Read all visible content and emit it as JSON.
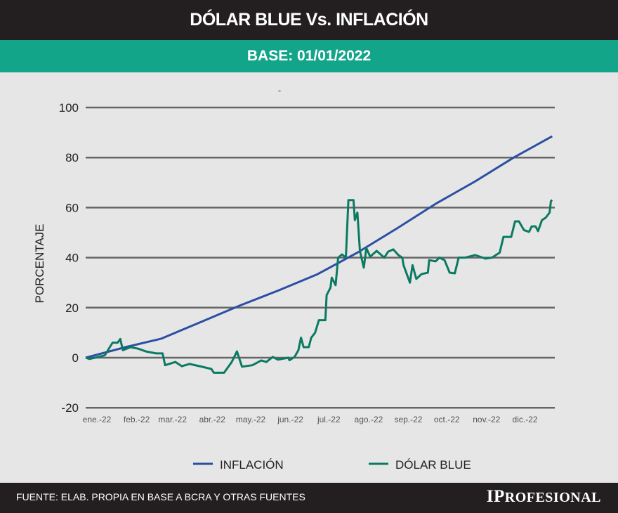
{
  "header": {
    "title": "DÓLAR BLUE Vs. INFLACIÓN",
    "subtitle": "BASE: 01/01/2022"
  },
  "footer": {
    "source": "FUENTE: ELAB. PROPIA EN BASE A BCRA Y OTRAS FUENTES",
    "logo": "IPROFESIONAL"
  },
  "chart_data": {
    "type": "line",
    "title": "",
    "subtitle": "-",
    "xlabel": "",
    "ylabel": "PORCENTAJE",
    "ylim": [
      -20,
      100
    ],
    "yticks": [
      "100",
      "80",
      "60",
      "40",
      "20",
      "0",
      "-20"
    ],
    "ytick_values": [
      100,
      80,
      60,
      40,
      20,
      0,
      -20
    ],
    "xtick_labels": [
      "ene.-22",
      "feb.-22",
      "mar.-22",
      "abr.-22",
      "may.-22",
      "jun.-22",
      "jul.-22",
      "ago.-22",
      "sep.-22",
      "oct.-22",
      "nov.-22",
      "dic.-22"
    ],
    "xtick_dates": [
      "2022-01-01",
      "2022-02-01",
      "2022-03-01",
      "2022-04-01",
      "2022-05-01",
      "2022-06-01",
      "2022-07-01",
      "2022-08-01",
      "2022-09-01",
      "2022-10-01",
      "2022-11-01",
      "2022-12-01"
    ],
    "grid": "horizontal",
    "legend_position": "bottom",
    "series": [
      {
        "name": "INFLACIÓN",
        "color": "#2b4fa3",
        "x": [
          "2022-01-01",
          "2022-02-01",
          "2022-03-01",
          "2022-04-01",
          "2022-05-01",
          "2022-06-01",
          "2022-07-01",
          "2022-08-01",
          "2022-09-01",
          "2022-10-01",
          "2022-11-01",
          "2022-12-01",
          "2022-12-31"
        ],
        "y": [
          0,
          4.2,
          7.6,
          14.3,
          20.8,
          27,
          33.4,
          42,
          51.7,
          61.5,
          70.5,
          80,
          88.5
        ]
      },
      {
        "name": "DÓLAR BLUE",
        "color": "#0b7a62",
        "x": [
          "2022-01-01",
          "2022-01-04",
          "2022-01-11",
          "2022-01-16",
          "2022-01-22",
          "2022-01-26",
          "2022-01-28",
          "2022-01-30",
          "2022-02-05",
          "2022-02-11",
          "2022-02-17",
          "2022-02-25",
          "2022-03-02",
          "2022-03-04",
          "2022-03-12",
          "2022-03-17",
          "2022-03-23",
          "2022-03-31",
          "2022-04-09",
          "2022-04-11",
          "2022-04-19",
          "2022-04-25",
          "2022-04-29",
          "2022-05-03",
          "2022-05-11",
          "2022-05-18",
          "2022-05-22",
          "2022-05-27",
          "2022-05-31",
          "2022-06-08",
          "2022-06-09",
          "2022-06-13",
          "2022-06-16",
          "2022-06-18",
          "2022-06-20",
          "2022-06-24",
          "2022-06-26",
          "2022-06-29",
          "2022-07-02",
          "2022-07-07",
          "2022-07-08",
          "2022-07-11",
          "2022-07-12",
          "2022-07-15",
          "2022-07-17",
          "2022-07-20",
          "2022-07-23",
          "2022-07-25",
          "2022-07-29",
          "2022-07-30",
          "2022-08-01",
          "2022-08-03",
          "2022-08-06",
          "2022-08-08",
          "2022-08-11",
          "2022-08-16",
          "2022-08-22",
          "2022-08-25",
          "2022-08-29",
          "2022-09-02",
          "2022-09-05",
          "2022-09-06",
          "2022-09-11",
          "2022-09-13",
          "2022-09-16",
          "2022-09-20",
          "2022-09-25",
          "2022-09-26",
          "2022-10-01",
          "2022-10-04",
          "2022-10-08",
          "2022-10-12",
          "2022-10-16",
          "2022-10-19",
          "2022-10-24",
          "2022-11-01",
          "2022-11-09",
          "2022-11-14",
          "2022-11-20",
          "2022-11-23",
          "2022-11-29",
          "2022-12-02",
          "2022-12-05",
          "2022-12-09",
          "2022-12-13",
          "2022-12-15",
          "2022-12-18",
          "2022-12-20",
          "2022-12-23",
          "2022-12-26",
          "2022-12-29",
          "2022-12-30",
          "2022-12-31"
        ],
        "y": [
          0,
          -0.5,
          0.3,
          1,
          6,
          6,
          7.5,
          3,
          4.2,
          3.6,
          2.5,
          1.7,
          1.7,
          -3,
          -1.7,
          -3.4,
          -2.5,
          -3.4,
          -4.5,
          -6,
          -6,
          -1.7,
          2.5,
          -3.6,
          -3,
          -1.1,
          -1.7,
          0.3,
          -0.8,
          0,
          -1,
          0.3,
          3,
          8,
          4.2,
          4.2,
          8,
          10,
          15,
          15,
          25,
          28,
          32,
          29,
          40,
          41.3,
          40,
          63,
          63,
          55,
          58,
          42.7,
          36,
          43.8,
          40.4,
          42.7,
          40,
          42.4,
          43.3,
          41,
          40,
          37,
          30,
          37,
          31.5,
          33.4,
          34,
          39,
          38.5,
          40,
          39,
          34,
          33.7,
          40,
          40,
          41,
          39.6,
          40,
          42,
          48.3,
          48.3,
          54.5,
          54.5,
          51,
          50.3,
          52.5,
          52.5,
          50.6,
          55,
          56,
          58,
          62.6,
          63
        ]
      }
    ]
  }
}
